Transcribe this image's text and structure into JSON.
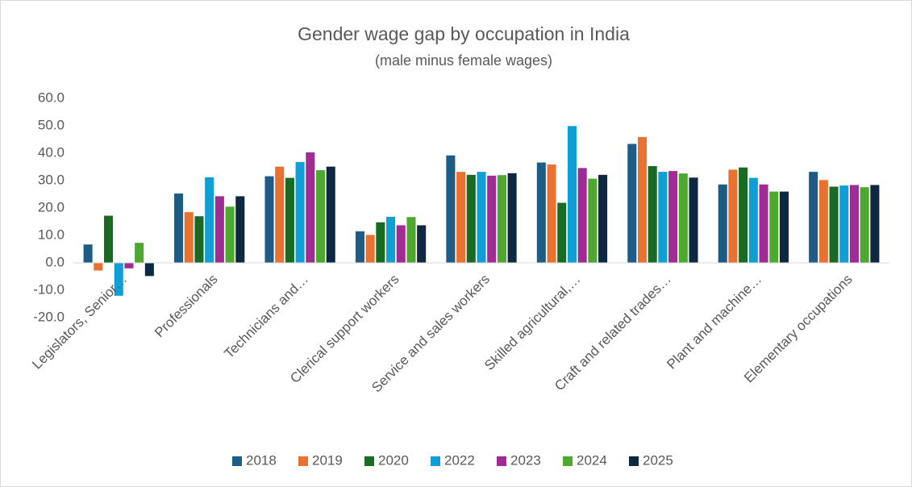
{
  "chart_data": {
    "type": "bar",
    "title": "Gender wage gap by occupation in India",
    "subtitle": "(male minus female wages)",
    "categories": [
      "Legislators, Senior…",
      "Professionals",
      "Technicians and…",
      "Clerical support workers",
      "Service and sales workers",
      "Skilled agricultural,…",
      "Craft and related trades…",
      "Plant and machine…",
      "Elementary occupations"
    ],
    "series": [
      {
        "name": "2018",
        "color": "#1f5c85",
        "values": [
          6.7,
          25.3,
          31.6,
          11.5,
          39.2,
          36.6,
          43.4,
          28.6,
          33.2
        ]
      },
      {
        "name": "2019",
        "color": "#e97132",
        "values": [
          -2.8,
          18.5,
          35.1,
          10.2,
          33.2,
          35.9,
          45.9,
          34.0,
          30.2
        ]
      },
      {
        "name": "2020",
        "color": "#196b24",
        "values": [
          17.2,
          17.0,
          31.0,
          14.8,
          32.1,
          21.9,
          35.3,
          34.8,
          27.8
        ]
      },
      {
        "name": "2022",
        "color": "#0f9ed5",
        "values": [
          -12.0,
          31.2,
          36.8,
          16.8,
          33.2,
          49.9,
          33.2,
          31.0,
          28.2
        ]
      },
      {
        "name": "2023",
        "color": "#a02b93",
        "values": [
          -2.0,
          24.3,
          40.3,
          13.7,
          31.8,
          34.6,
          33.5,
          28.6,
          28.4
        ]
      },
      {
        "name": "2024",
        "color": "#4ea72e",
        "values": [
          7.3,
          20.5,
          33.8,
          16.7,
          32.0,
          30.7,
          32.6,
          26.0,
          27.6
        ]
      },
      {
        "name": "2025",
        "color": "#0e2841",
        "values": [
          -4.8,
          24.3,
          35.1,
          13.7,
          32.7,
          32.1,
          31.1,
          26.0,
          28.4
        ]
      }
    ],
    "ylim": [
      -20,
      60
    ],
    "yticks": [
      {
        "value": -20,
        "label": "-20.0"
      },
      {
        "value": -10,
        "label": "-10.0"
      },
      {
        "value": 0,
        "label": "0.0"
      },
      {
        "value": 10,
        "label": "10.0"
      },
      {
        "value": 20,
        "label": "20.0"
      },
      {
        "value": 30,
        "label": "30.0"
      },
      {
        "value": 40,
        "label": "40.0"
      },
      {
        "value": 50,
        "label": "50.0"
      },
      {
        "value": 60,
        "label": "60.0"
      }
    ],
    "grid": false,
    "legend": "bottom"
  }
}
